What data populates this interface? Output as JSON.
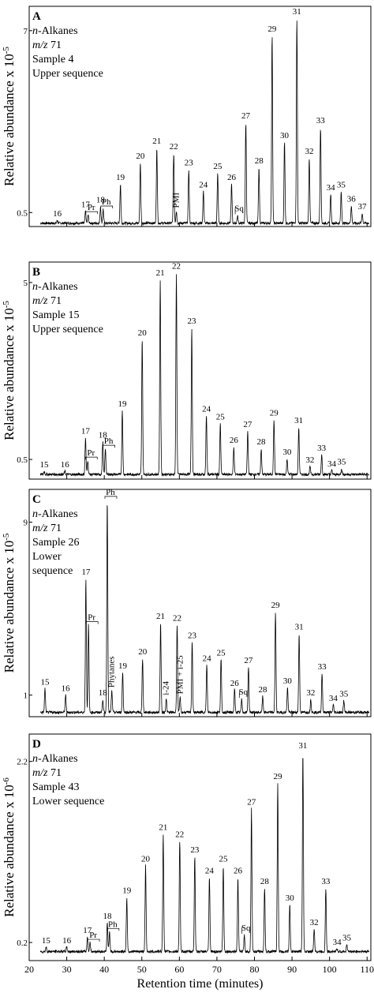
{
  "x_axis": {
    "label": "Retention time (minutes)",
    "ticks": [
      20,
      30,
      40,
      50,
      60,
      70,
      80,
      90,
      100,
      110
    ],
    "range": [
      20,
      111
    ]
  },
  "chart_data": [
    {
      "type": "line",
      "panel": "A",
      "info_lines": [
        "n-Alkanes",
        "m/z 71",
        "Sample 4",
        "Upper sequence"
      ],
      "ylabel": "Relative abundance x 10",
      "ylabel_exponent": "-5",
      "yticks": [
        {
          "label": "7",
          "value": 7
        },
        {
          "label": "0.5",
          "value": 0.5
        }
      ],
      "ylim": [
        0,
        7.7
      ],
      "baseline": 0.12,
      "peaks": [
        {
          "label": "16",
          "x": 27.5,
          "y": 0.22
        },
        {
          "label": "17",
          "x": 35.0,
          "y": 0.55
        },
        {
          "label": "Pr",
          "x": 35.7,
          "y": 0.42
        },
        {
          "label": "18",
          "x": 39.0,
          "y": 0.72
        },
        {
          "label": "Ph",
          "x": 39.7,
          "y": 0.62
        },
        {
          "label": "19",
          "x": 44.3,
          "y": 1.52
        },
        {
          "label": "20",
          "x": 49.6,
          "y": 2.28
        },
        {
          "label": "21",
          "x": 54.0,
          "y": 2.82
        },
        {
          "label": "22",
          "x": 58.5,
          "y": 2.62
        },
        {
          "label": "PMI",
          "x": 59.2,
          "y": 0.55
        },
        {
          "label": "23",
          "x": 62.5,
          "y": 2.05
        },
        {
          "label": "24",
          "x": 66.4,
          "y": 1.25
        },
        {
          "label": "25",
          "x": 70.2,
          "y": 1.92
        },
        {
          "label": "26",
          "x": 73.9,
          "y": 1.52
        },
        {
          "label": "Sq",
          "x": 75.5,
          "y": 0.38
        },
        {
          "label": "27",
          "x": 77.7,
          "y": 3.72
        },
        {
          "label": "28",
          "x": 81.2,
          "y": 2.12
        },
        {
          "label": "29",
          "x": 84.7,
          "y": 6.82
        },
        {
          "label": "30",
          "x": 88.0,
          "y": 3.02
        },
        {
          "label": "31",
          "x": 91.3,
          "y": 7.45
        },
        {
          "label": "32",
          "x": 94.6,
          "y": 2.45
        },
        {
          "label": "33",
          "x": 97.6,
          "y": 3.55
        },
        {
          "label": "34",
          "x": 100.3,
          "y": 1.15
        },
        {
          "label": "35",
          "x": 103.1,
          "y": 1.25
        },
        {
          "label": "36",
          "x": 105.8,
          "y": 0.75
        },
        {
          "label": "37",
          "x": 108.7,
          "y": 0.48
        }
      ]
    },
    {
      "type": "line",
      "panel": "B",
      "info_lines": [
        "n-Alkanes",
        "m/z 71",
        "Sample 15",
        "Upper sequence"
      ],
      "ylabel": "Relative abundance x 10",
      "ylabel_exponent": "-5",
      "yticks": [
        {
          "label": "5",
          "value": 5
        },
        {
          "label": "0.5",
          "value": 0.5
        }
      ],
      "ylim": [
        0,
        5.4
      ],
      "baseline": 0.12,
      "peaks": [
        {
          "label": "15",
          "x": 24.0,
          "y": 0.2
        },
        {
          "label": "16",
          "x": 29.5,
          "y": 0.2
        },
        {
          "label": "17",
          "x": 35.0,
          "y": 1.05
        },
        {
          "label": "Pr",
          "x": 35.6,
          "y": 0.48
        },
        {
          "label": "18",
          "x": 39.6,
          "y": 0.95
        },
        {
          "label": "Ph",
          "x": 40.3,
          "y": 0.78
        },
        {
          "label": "19",
          "x": 44.8,
          "y": 1.75
        },
        {
          "label": "20",
          "x": 50.1,
          "y": 3.55
        },
        {
          "label": "21",
          "x": 54.9,
          "y": 5.08
        },
        {
          "label": "22",
          "x": 59.2,
          "y": 5.25
        },
        {
          "label": "23",
          "x": 63.3,
          "y": 3.85
        },
        {
          "label": "24",
          "x": 67.2,
          "y": 1.62
        },
        {
          "label": "25",
          "x": 70.9,
          "y": 1.42
        },
        {
          "label": "26",
          "x": 74.5,
          "y": 0.82
        },
        {
          "label": "27",
          "x": 78.2,
          "y": 1.22
        },
        {
          "label": "28",
          "x": 81.8,
          "y": 0.78
        },
        {
          "label": "29",
          "x": 85.2,
          "y": 1.52
        },
        {
          "label": "30",
          "x": 88.7,
          "y": 0.52
        },
        {
          "label": "31",
          "x": 91.8,
          "y": 1.32
        },
        {
          "label": "32",
          "x": 94.8,
          "y": 0.32
        },
        {
          "label": "33",
          "x": 97.9,
          "y": 0.62
        },
        {
          "label": "34",
          "x": 100.6,
          "y": 0.22
        },
        {
          "label": "35",
          "x": 103.2,
          "y": 0.27
        }
      ]
    },
    {
      "type": "line",
      "panel": "C",
      "info_lines": [
        "n-Alkanes",
        "m/z 71",
        "Sample 26",
        "Lower",
        "sequence"
      ],
      "ylabel": "Relative abundance x 10",
      "ylabel_exponent": "-5",
      "yticks": [
        {
          "label": "9",
          "value": 9
        },
        {
          "label": "1",
          "value": 1
        }
      ],
      "ylim": [
        0,
        10.3
      ],
      "baseline": 0.2,
      "peaks": [
        {
          "label": "15",
          "x": 24.2,
          "y": 1.3
        },
        {
          "label": "16",
          "x": 29.7,
          "y": 1.0
        },
        {
          "label": "17",
          "x": 35.1,
          "y": 6.4
        },
        {
          "label": "Pr",
          "x": 35.8,
          "y": 4.25
        },
        {
          "label": "18",
          "x": 39.6,
          "y": 0.8
        },
        {
          "label": "Ph",
          "x": 40.8,
          "y": 10.05
        },
        {
          "label": "Phytanes",
          "x": 42.0,
          "y": 1.2
        },
        {
          "label": "19",
          "x": 44.9,
          "y": 2.05
        },
        {
          "label": "20",
          "x": 50.2,
          "y": 2.7
        },
        {
          "label": "21",
          "x": 55.0,
          "y": 4.35
        },
        {
          "label": "i-24",
          "x": 56.5,
          "y": 0.85
        },
        {
          "label": "22",
          "x": 59.4,
          "y": 4.25
        },
        {
          "label": "PMI + i-25",
          "x": 60.2,
          "y": 0.9
        },
        {
          "label": "23",
          "x": 63.4,
          "y": 3.45
        },
        {
          "label": "24",
          "x": 67.3,
          "y": 2.4
        },
        {
          "label": "25",
          "x": 71.1,
          "y": 2.65
        },
        {
          "label": "26",
          "x": 74.7,
          "y": 1.25
        },
        {
          "label": "Sq",
          "x": 76.6,
          "y": 0.8
        },
        {
          "label": "27",
          "x": 78.4,
          "y": 2.3
        },
        {
          "label": "28",
          "x": 82.2,
          "y": 0.95
        },
        {
          "label": "29",
          "x": 85.6,
          "y": 4.85
        },
        {
          "label": "30",
          "x": 88.8,
          "y": 1.35
        },
        {
          "label": "31",
          "x": 91.9,
          "y": 3.85
        },
        {
          "label": "32",
          "x": 95.0,
          "y": 0.8
        },
        {
          "label": "33",
          "x": 98.0,
          "y": 2.0
        },
        {
          "label": "34",
          "x": 101.0,
          "y": 0.55
        },
        {
          "label": "35",
          "x": 103.8,
          "y": 0.75
        }
      ]
    },
    {
      "type": "line",
      "panel": "D",
      "info_lines": [
        "n-Alkanes",
        "m/z 71",
        "Sample 43",
        "Lower sequence"
      ],
      "ylabel": "Relative abundance x 10",
      "ylabel_exponent": "-6",
      "yticks": [
        {
          "label": "2.2",
          "value": 2.2
        },
        {
          "label": "0.2",
          "value": 0.2
        }
      ],
      "ylim": [
        0,
        2.45
      ],
      "baseline": 0.1,
      "peaks": [
        {
          "label": "15",
          "x": 24.5,
          "y": 0.15
        },
        {
          "label": "16",
          "x": 30.0,
          "y": 0.15
        },
        {
          "label": "17",
          "x": 35.5,
          "y": 0.26
        },
        {
          "label": "Pr",
          "x": 36.2,
          "y": 0.2
        },
        {
          "label": "18",
          "x": 40.8,
          "y": 0.42
        },
        {
          "label": "Ph",
          "x": 41.4,
          "y": 0.32
        },
        {
          "label": "19",
          "x": 46.0,
          "y": 0.7
        },
        {
          "label": "20",
          "x": 51.0,
          "y": 1.05
        },
        {
          "label": "21",
          "x": 55.7,
          "y": 1.4
        },
        {
          "label": "22",
          "x": 60.1,
          "y": 1.32
        },
        {
          "label": "23",
          "x": 64.1,
          "y": 1.15
        },
        {
          "label": "24",
          "x": 68.0,
          "y": 0.92
        },
        {
          "label": "25",
          "x": 71.7,
          "y": 1.05
        },
        {
          "label": "26",
          "x": 75.6,
          "y": 0.92
        },
        {
          "label": "Sq",
          "x": 77.3,
          "y": 0.28
        },
        {
          "label": "27",
          "x": 79.2,
          "y": 1.68
        },
        {
          "label": "28",
          "x": 82.7,
          "y": 0.8
        },
        {
          "label": "29",
          "x": 86.2,
          "y": 1.96
        },
        {
          "label": "30",
          "x": 89.4,
          "y": 0.62
        },
        {
          "label": "31",
          "x": 92.9,
          "y": 2.3
        },
        {
          "label": "32",
          "x": 95.9,
          "y": 0.35
        },
        {
          "label": "33",
          "x": 99.0,
          "y": 0.8
        },
        {
          "label": "34",
          "x": 102.0,
          "y": 0.13
        },
        {
          "label": "35",
          "x": 104.6,
          "y": 0.18
        }
      ]
    }
  ]
}
